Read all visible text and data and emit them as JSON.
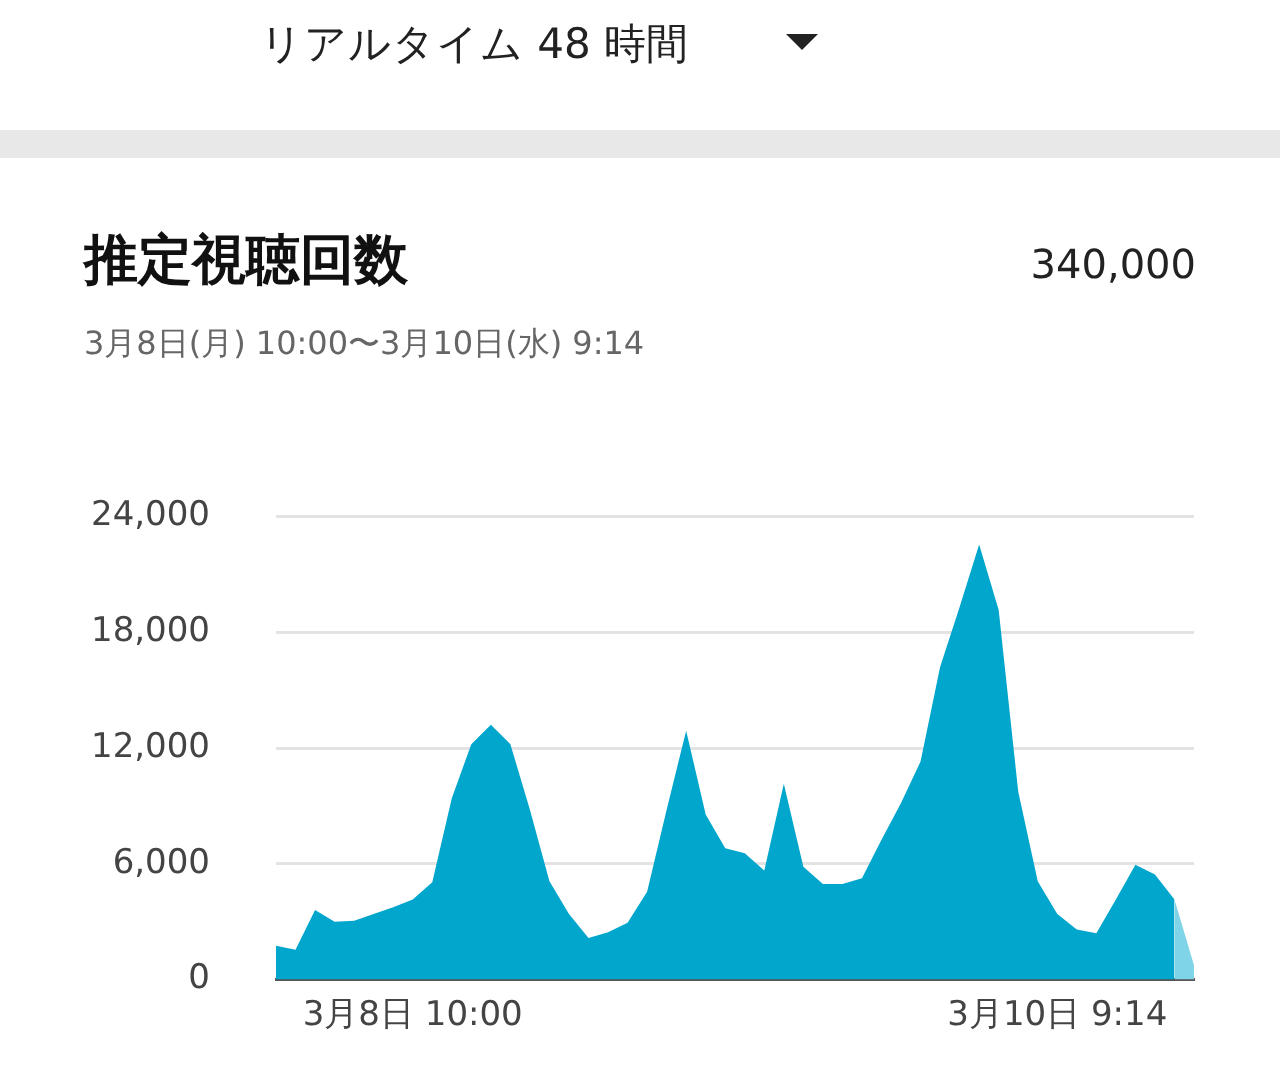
{
  "chart_data": {
    "type": "area",
    "title": "推定視聴回数",
    "subtitle": "3月8日(月) 10:00〜3月10日(水) 9:14",
    "annotations": [
      "リアルタイム 48 時間",
      "340,000"
    ],
    "categories": [
      null,
      null,
      null,
      null,
      null,
      null,
      null,
      "3月8日 10:00",
      null,
      null,
      null,
      null,
      null,
      null,
      null,
      null,
      null,
      null,
      null,
      null,
      null,
      null,
      null,
      null,
      null,
      null,
      null,
      null,
      null,
      null,
      null,
      null,
      null,
      null,
      null,
      null,
      null,
      null,
      null,
      null,
      "3月10日 9:14",
      null,
      null,
      null,
      null,
      null,
      null,
      null
    ],
    "series": [
      {
        "color": "#00a6cc",
        "values": [
          1750,
          1550,
          3600,
          3000,
          3050,
          3400,
          3750,
          4150,
          5050,
          9400,
          12200,
          13200,
          12200,
          8800,
          5100,
          3400,
          2150,
          2450,
          2950,
          4550,
          8800,
          12900,
          8550,
          6800,
          6550,
          5650,
          10150,
          5850,
          4950,
          4950,
          5250,
          7250,
          9150,
          11300,
          16200,
          19300,
          22550,
          19150,
          9750,
          5100,
          3400,
          2600,
          2400,
          4150,
          5950,
          5450,
          4150,
          null
        ]
      },
      {
        "color": "#80d4e8",
        "values": [
          null,
          null,
          null,
          null,
          null,
          null,
          null,
          null,
          null,
          null,
          null,
          null,
          null,
          null,
          null,
          null,
          null,
          null,
          null,
          null,
          null,
          null,
          null,
          null,
          null,
          null,
          null,
          null,
          null,
          null,
          null,
          null,
          null,
          null,
          null,
          null,
          null,
          null,
          null,
          null,
          null,
          null,
          null,
          null,
          null,
          null,
          4150,
          750
        ]
      }
    ],
    "ylim": [
      0,
      24000
    ],
    "yticks": [
      {
        "value": 0,
        "label": "0"
      },
      {
        "value": 6000,
        "label": "6,000"
      },
      {
        "value": 12000,
        "label": "12,000"
      },
      {
        "value": 18000,
        "label": "18,000"
      },
      {
        "value": 24000,
        "label": "24,000"
      }
    ],
    "grid": "y",
    "legend": false,
    "marker": "none"
  }
}
